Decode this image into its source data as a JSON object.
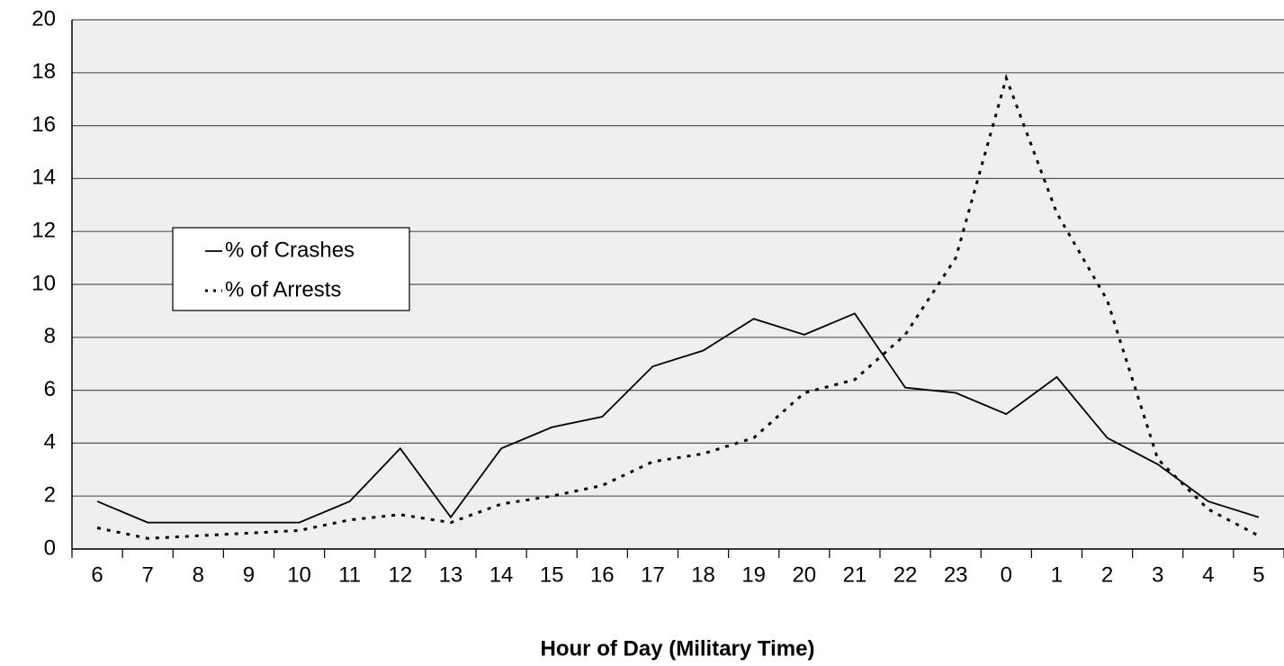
{
  "chart_data": {
    "type": "line",
    "x_label": "Hour of Day (Military Time)",
    "categories": [
      "6",
      "7",
      "8",
      "9",
      "10",
      "11",
      "12",
      "13",
      "14",
      "15",
      "16",
      "17",
      "18",
      "19",
      "20",
      "21",
      "22",
      "23",
      "0",
      "1",
      "2",
      "3",
      "4",
      "5"
    ],
    "series": [
      {
        "name": "% of Crashes",
        "color": "#000000",
        "style": "solid",
        "values": [
          1.8,
          1.0,
          1.0,
          1.0,
          1.0,
          1.8,
          3.8,
          1.2,
          3.8,
          4.6,
          5.0,
          6.9,
          7.5,
          8.7,
          8.1,
          8.9,
          6.1,
          5.9,
          5.1,
          6.5,
          4.2,
          3.2,
          1.8,
          1.2
        ]
      },
      {
        "name": "% of Arrests",
        "color": "#000000",
        "style": "dotted",
        "values": [
          0.8,
          0.4,
          0.5,
          0.6,
          0.7,
          1.1,
          1.3,
          1.0,
          1.7,
          2.0,
          2.4,
          3.3,
          3.6,
          4.2,
          5.9,
          6.4,
          8.1,
          11.0,
          17.8,
          12.7,
          9.4,
          3.4,
          1.5,
          0.5
        ]
      }
    ],
    "ylim": [
      0,
      20
    ],
    "yticks": [
      0,
      2,
      4,
      6,
      8,
      10,
      12,
      14,
      16,
      18,
      20
    ],
    "grid": true,
    "legend": "upper left"
  }
}
